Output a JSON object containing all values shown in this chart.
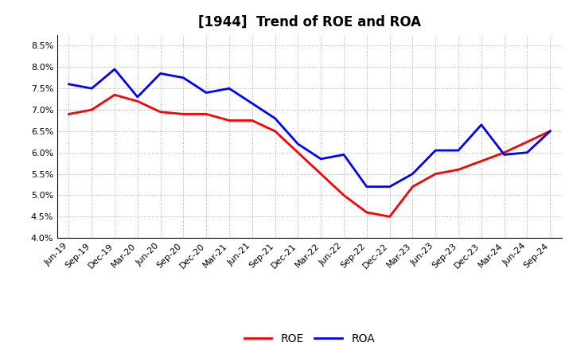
{
  "title": "[1944]  Trend of ROE and ROA",
  "labels": [
    "Jun-19",
    "Sep-19",
    "Dec-19",
    "Mar-20",
    "Jun-20",
    "Sep-20",
    "Dec-20",
    "Mar-21",
    "Jun-21",
    "Sep-21",
    "Dec-21",
    "Mar-22",
    "Jun-22",
    "Sep-22",
    "Dec-22",
    "Mar-23",
    "Jun-23",
    "Sep-23",
    "Dec-23",
    "Mar-24",
    "Jun-24",
    "Sep-24"
  ],
  "ROE": [
    6.9,
    7.0,
    7.35,
    7.2,
    6.95,
    6.9,
    6.9,
    6.75,
    6.75,
    6.5,
    6.0,
    5.5,
    5.0,
    4.6,
    4.5,
    5.2,
    5.5,
    5.6,
    5.8,
    6.0,
    6.25,
    6.5
  ],
  "ROA": [
    7.6,
    7.5,
    7.95,
    7.3,
    7.85,
    7.75,
    7.4,
    7.5,
    7.15,
    6.8,
    6.2,
    5.85,
    5.95,
    5.2,
    5.2,
    5.5,
    6.05,
    6.05,
    6.65,
    5.95,
    6.0,
    6.5
  ],
  "ROE_color": "#FF0000",
  "ROA_color": "#0000FF",
  "ylim": [
    4.0,
    8.75
  ],
  "yticks": [
    4.0,
    4.5,
    5.0,
    5.5,
    6.0,
    6.5,
    7.0,
    7.5,
    8.0,
    8.5
  ],
  "bg_color": "#ffffff",
  "plot_bg_color": "#ffffff",
  "grid_color": "#aaaaaa",
  "line_width": 2.0,
  "title_fontsize": 12,
  "tick_fontsize": 8,
  "legend_fontsize": 10
}
